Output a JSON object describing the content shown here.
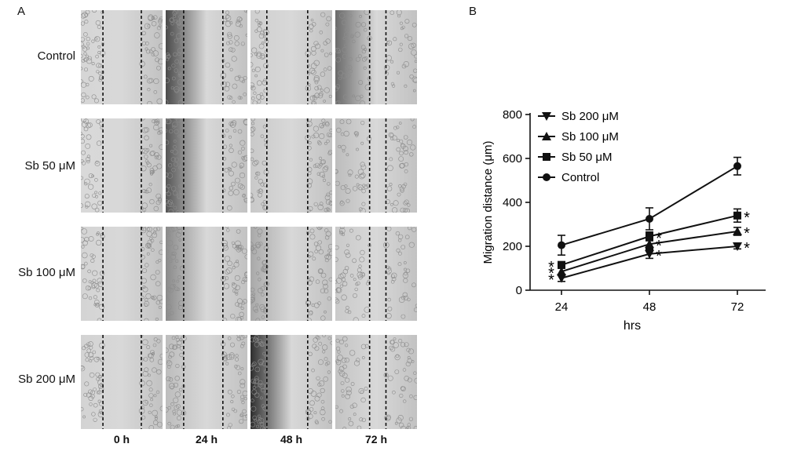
{
  "panel_a": {
    "letter": "A",
    "row_labels": [
      "Control",
      "Sb 50 μM",
      "Sb 100 μM",
      "Sb 200 μM"
    ],
    "col_labels": [
      "0 h",
      "24 h",
      "48 h",
      "72 h"
    ]
  },
  "panel_b": {
    "letter": "B"
  },
  "chart_data": {
    "type": "line",
    "x": [
      "24",
      "48",
      "72"
    ],
    "xlabel": "hrs",
    "ylabel": "Migration distance (μm)",
    "ylim": [
      0,
      800
    ],
    "yticks": [
      "0",
      "200",
      "400",
      "600",
      "800"
    ],
    "legend_position": "top-left",
    "significance_marker": "*",
    "series": [
      {
        "name": "Sb 200 μM",
        "marker": "triangle-down",
        "values": [
          55,
          165,
          200
        ],
        "errors": [
          15,
          20,
          12
        ],
        "sig": [
          true,
          true,
          true
        ]
      },
      {
        "name": "Sb 100 μM",
        "marker": "triangle-up",
        "values": [
          85,
          210,
          268
        ],
        "errors": [
          15,
          20,
          18
        ],
        "sig": [
          true,
          true,
          true
        ]
      },
      {
        "name": "Sb 50 μM",
        "marker": "square",
        "values": [
          115,
          245,
          340
        ],
        "errors": [
          15,
          20,
          30
        ],
        "sig": [
          true,
          true,
          true
        ]
      },
      {
        "name": "Control",
        "marker": "circle",
        "values": [
          205,
          325,
          565
        ],
        "errors": [
          45,
          50,
          40
        ],
        "sig": [
          false,
          false,
          false
        ]
      }
    ]
  }
}
